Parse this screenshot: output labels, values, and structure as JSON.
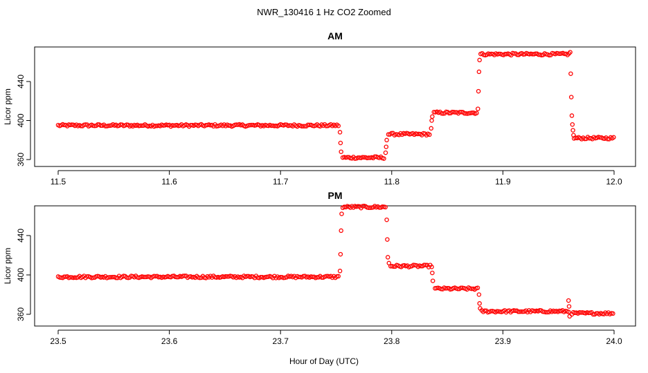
{
  "figure_title": "NWR_130416  1 Hz CO2 Zoomed",
  "xlabel": "Hour of Day (UTC)",
  "colors": {
    "points": "#ff0000",
    "axes": "#000000",
    "background": "#ffffff"
  },
  "chart_data": [
    {
      "type": "scatter",
      "title": "AM",
      "xlabel": "",
      "ylabel": "Licor ppm",
      "xlim": [
        11.5,
        12.0
      ],
      "ylim": [
        355,
        475
      ],
      "grid": false,
      "xticks": [
        "11.5",
        "11.6",
        "11.7",
        "11.8",
        "11.9",
        "12.0"
      ],
      "yticks": [
        "360",
        "400",
        "440"
      ],
      "series": [
        {
          "segments": [
            {
              "x0": 11.5,
              "x1": 11.753,
              "y": 395
            },
            {
              "x0": 11.756,
              "x1": 11.794,
              "y": 362
            },
            {
              "x0": 11.797,
              "x1": 11.835,
              "y": 386
            },
            {
              "x0": 11.838,
              "x1": 11.877,
              "y": 408
            },
            {
              "x0": 11.88,
              "x1": 11.96,
              "y": 468
            },
            {
              "x0": 11.964,
              "x1": 12.0,
              "y": 382
            }
          ],
          "transitions": [
            {
              "x": 11.7535,
              "y": 388
            },
            {
              "x": 11.754,
              "y": 377
            },
            {
              "x": 11.7545,
              "y": 368
            },
            {
              "x": 11.7945,
              "y": 367
            },
            {
              "x": 11.795,
              "y": 373
            },
            {
              "x": 11.7955,
              "y": 380
            },
            {
              "x": 11.8355,
              "y": 392
            },
            {
              "x": 11.836,
              "y": 400
            },
            {
              "x": 11.8365,
              "y": 404
            },
            {
              "x": 11.8775,
              "y": 412
            },
            {
              "x": 11.878,
              "y": 430
            },
            {
              "x": 11.8785,
              "y": 450
            },
            {
              "x": 11.879,
              "y": 462
            },
            {
              "x": 11.9605,
              "y": 470
            },
            {
              "x": 11.961,
              "y": 448
            },
            {
              "x": 11.9615,
              "y": 424
            },
            {
              "x": 11.962,
              "y": 405
            },
            {
              "x": 11.9625,
              "y": 396
            },
            {
              "x": 11.963,
              "y": 390
            },
            {
              "x": 11.9635,
              "y": 385
            }
          ]
        }
      ]
    },
    {
      "type": "scatter",
      "title": "PM",
      "xlabel": "",
      "ylabel": "Licor ppm",
      "xlim": [
        23.5,
        24.0
      ],
      "ylim": [
        355,
        475
      ],
      "grid": false,
      "xticks": [
        "23.5",
        "23.6",
        "23.7",
        "23.8",
        "23.9",
        "24.0"
      ],
      "yticks": [
        "360",
        "400",
        "440"
      ],
      "series": [
        {
          "segments": [
            {
              "x0": 23.5,
              "x1": 23.753,
              "y": 398
            },
            {
              "x0": 23.756,
              "x1": 23.795,
              "y": 469
            },
            {
              "x0": 23.799,
              "x1": 23.836,
              "y": 409
            },
            {
              "x0": 23.839,
              "x1": 23.878,
              "y": 386
            },
            {
              "x0": 23.881,
              "x1": 23.96,
              "y": 363
            },
            {
              "x0": 23.962,
              "x1": 24.0,
              "y": 361
            }
          ],
          "transitions": [
            {
              "x": 23.7535,
              "y": 404
            },
            {
              "x": 23.754,
              "y": 421
            },
            {
              "x": 23.7545,
              "y": 445
            },
            {
              "x": 23.755,
              "y": 462
            },
            {
              "x": 23.7955,
              "y": 456
            },
            {
              "x": 23.796,
              "y": 436
            },
            {
              "x": 23.7965,
              "y": 418
            },
            {
              "x": 23.7975,
              "y": 412
            },
            {
              "x": 23.8365,
              "y": 402
            },
            {
              "x": 23.837,
              "y": 394
            },
            {
              "x": 23.8785,
              "y": 380
            },
            {
              "x": 23.879,
              "y": 371
            },
            {
              "x": 23.8795,
              "y": 366
            },
            {
              "x": 23.959,
              "y": 374
            },
            {
              "x": 23.9595,
              "y": 368
            },
            {
              "x": 23.96,
              "y": 358
            }
          ]
        }
      ]
    }
  ]
}
